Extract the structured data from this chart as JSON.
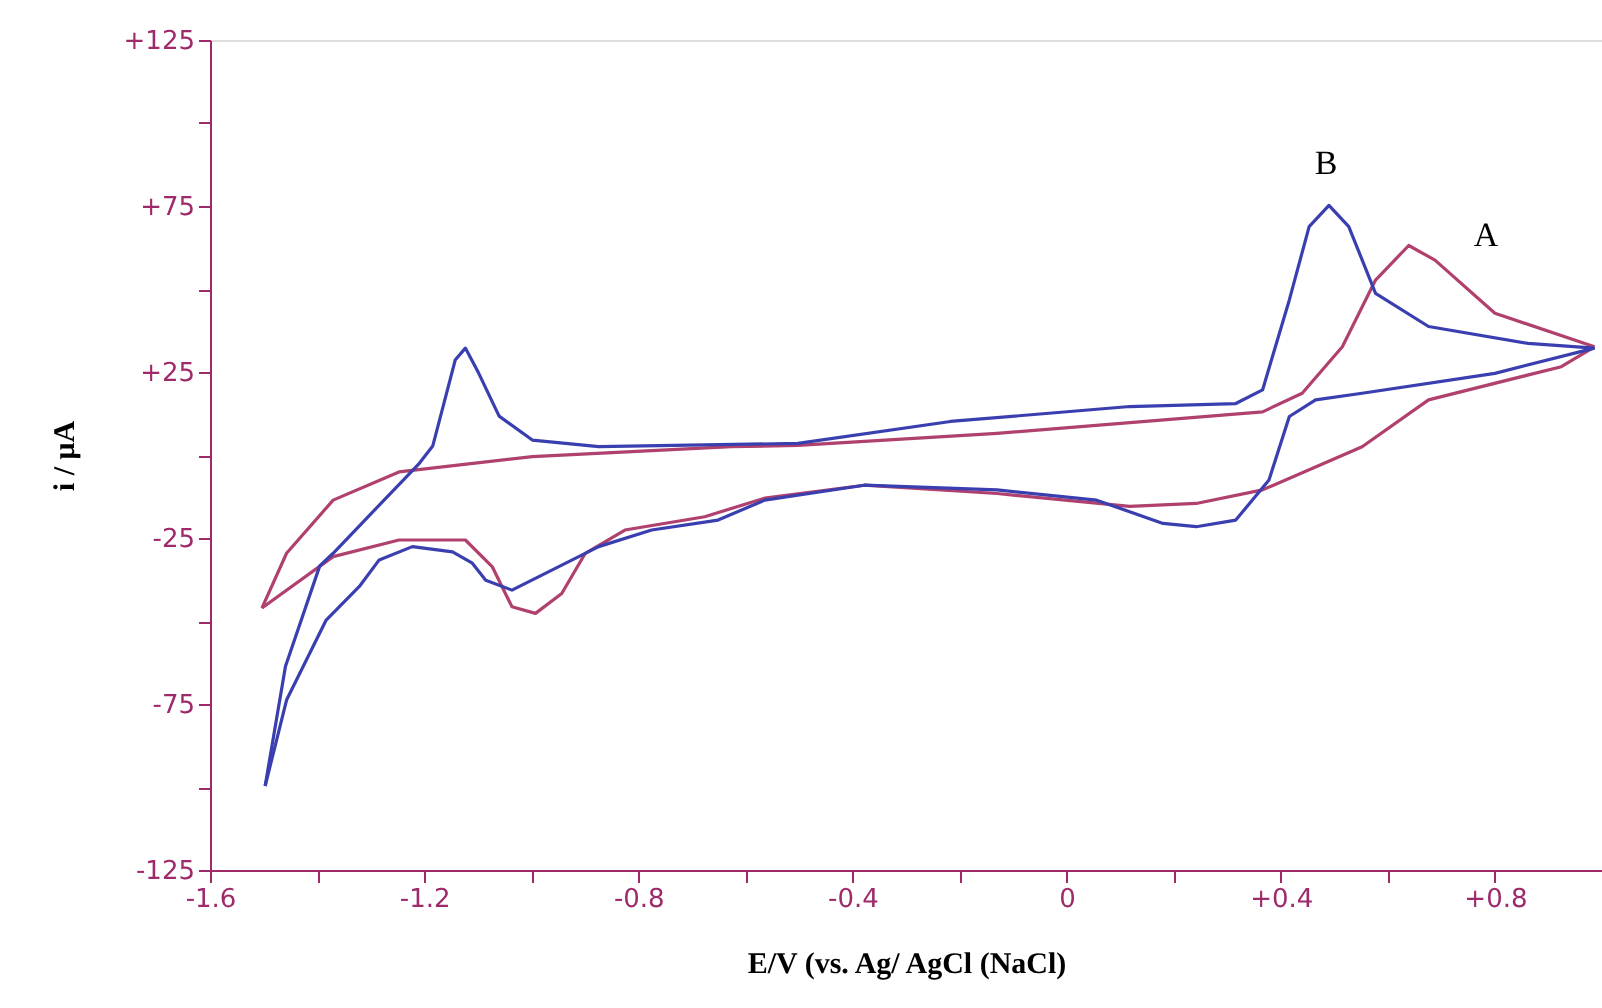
{
  "chart_data": {
    "type": "line",
    "xlabel": "E/V (vs. Ag/ AgCl (NaCl)",
    "ylabel": "i / μA",
    "xlim": [
      -1.6,
      1.0
    ],
    "ylim": [
      -125,
      125
    ],
    "xticks": [
      {
        "value": -1.6,
        "label": "-1.6"
      },
      {
        "value": -1.4,
        "label": null
      },
      {
        "value": -1.2,
        "label": "-1.2"
      },
      {
        "value": -1.0,
        "label": null
      },
      {
        "value": -0.8,
        "label": "-0.8"
      },
      {
        "value": -0.6,
        "label": null
      },
      {
        "value": -0.4,
        "label": "-0.4"
      },
      {
        "value": -0.2,
        "label": null
      },
      {
        "value": 0,
        "label": "0"
      },
      {
        "value": 0.2,
        "label": null
      },
      {
        "value": 0.4,
        "label": "+0.4"
      },
      {
        "value": 0.6,
        "label": null
      },
      {
        "value": 0.8,
        "label": "+0.8"
      }
    ],
    "yticks": [
      {
        "value": -125,
        "label": "-125"
      },
      {
        "value": -100,
        "label": null
      },
      {
        "value": -75,
        "label": "-75"
      },
      {
        "value": -50,
        "label": null
      },
      {
        "value": -25,
        "label": "-25"
      },
      {
        "value": 0,
        "label": null
      },
      {
        "value": 25,
        "label": "+25"
      },
      {
        "value": 50,
        "label": null
      },
      {
        "value": 75,
        "label": "+75"
      },
      {
        "value": 100,
        "label": null
      },
      {
        "value": 125,
        "label": "+125"
      }
    ],
    "grid": false,
    "marker": "none",
    "line_style": "solid",
    "series": [
      {
        "color": "#b0406e",
        "x": [
          -1.503,
          -1.457,
          -1.37,
          -1.247,
          -0.998,
          -0.626,
          -0.502,
          -0.13,
          0.366,
          0.44,
          0.515,
          0.577,
          0.639,
          0.688,
          0.8,
          0.986
        ],
        "values": [
          -46.1,
          -29.6,
          -13.6,
          -5.1,
          -0.5,
          2.5,
          2.9,
          6.5,
          13.0,
          18.6,
          32.6,
          52.7,
          63.1,
          58.7,
          42.7,
          32.6
        ]
      },
      {
        "color": "#b0406e",
        "x": [
          0.986,
          0.924,
          0.676,
          0.552,
          0.366,
          0.242,
          0.118,
          -0.13,
          -0.378,
          -0.564,
          -0.676,
          -0.825,
          -0.899,
          -0.943,
          -0.992,
          -1.036,
          -1.073,
          -1.123,
          -1.247,
          -1.37,
          -1.503
        ],
        "values": [
          32.6,
          26.6,
          16.6,
          2.5,
          -10.5,
          -14.6,
          -15.5,
          -11.6,
          -9.1,
          -13.0,
          -18.6,
          -22.6,
          -29.6,
          -41.7,
          -47.7,
          -45.7,
          -33.6,
          -25.6,
          -25.6,
          -30.6,
          -46.1
        ]
      },
      {
        "color": "#3a3fb0",
        "x": [
          -1.497,
          -1.459,
          -1.395,
          -1.37,
          -1.209,
          -1.184,
          -1.142,
          -1.123,
          -1.098,
          -1.06,
          -0.998,
          -0.874,
          -0.502,
          -0.217,
          0.118,
          0.316,
          0.366,
          0.416,
          0.453,
          0.49,
          0.527,
          0.577,
          0.676,
          0.862,
          0.986
        ],
        "values": [
          -99.7,
          -63.6,
          -33.4,
          -29.6,
          -2.5,
          2.7,
          28.6,
          32.2,
          24.6,
          11.7,
          4.5,
          2.5,
          3.5,
          10.1,
          14.6,
          15.5,
          19.6,
          46.7,
          68.8,
          75.2,
          68.8,
          48.7,
          38.7,
          33.6,
          32.2
        ]
      },
      {
        "color": "#3a3fb0",
        "x": [
          0.986,
          0.8,
          0.552,
          0.465,
          0.416,
          0.378,
          0.316,
          0.242,
          0.18,
          0.056,
          -0.13,
          -0.378,
          -0.564,
          -0.651,
          -0.775,
          -0.874,
          -1.036,
          -1.085,
          -1.11,
          -1.147,
          -1.222,
          -1.284,
          -1.321,
          -1.383,
          -1.457,
          -1.497
        ],
        "values": [
          32.2,
          24.6,
          18.6,
          16.6,
          11.6,
          -7.5,
          -19.6,
          -21.6,
          -20.6,
          -13.6,
          -10.5,
          -9.1,
          -13.6,
          -19.6,
          -22.6,
          -27.6,
          -40.7,
          -37.7,
          -32.6,
          -29.2,
          -27.6,
          -31.6,
          -39.6,
          -49.7,
          -73.8,
          -99.7
        ]
      }
    ],
    "annotations": [
      "B",
      "A"
    ]
  }
}
